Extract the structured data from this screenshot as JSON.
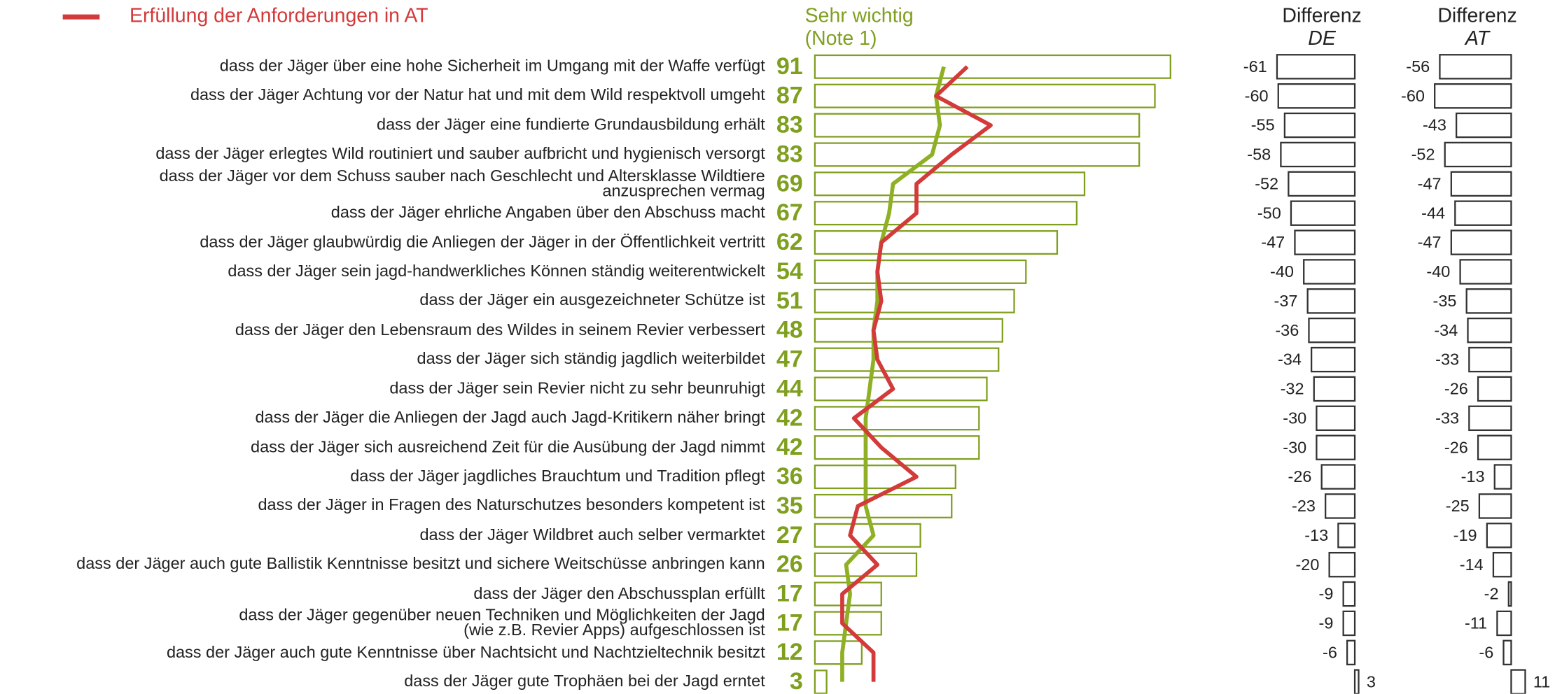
{
  "chart_data": {
    "type": "bar",
    "legend_position": "top-left",
    "categories": [
      "dass der Jäger über eine hohe Sicherheit im Umgang mit der Waffe verfügt",
      "dass der Jäger Achtung vor der Natur hat und mit dem Wild respektvoll umgeht",
      "dass der Jäger eine fundierte Grundausbildung erhält",
      "dass der Jäger erlegtes Wild routiniert und sauber aufbricht und hygienisch versorgt",
      "dass der Jäger vor dem Schuss sauber nach Geschlecht und Altersklasse Wildtiere\nanzusprechen vermag",
      "dass der Jäger ehrliche Angaben über den Abschuss macht",
      "dass der Jäger glaubwürdig die Anliegen der Jäger in der Öffentlichkeit vertritt",
      "dass der Jäger sein jagd-handwerkliches Können ständig weiterentwickelt",
      "dass der Jäger ein ausgezeichneter Schütze ist",
      "dass der Jäger den Lebensraum des Wildes in seinem Revier verbessert",
      "dass der Jäger sich ständig jagdlich weiterbildet",
      "dass der Jäger sein Revier nicht zu sehr beunruhigt",
      "dass der Jäger die Anliegen der Jagd auch Jagd-Kritikern näher bringt",
      "dass der Jäger sich ausreichend Zeit für die Ausübung der Jagd nimmt",
      "dass der Jäger jagdliches Brauchtum und Tradition pflegt",
      "dass der Jäger in Fragen des Naturschutzes besonders kompetent ist",
      "dass der Jäger Wildbret auch selber vermarktet",
      "dass der Jäger auch gute Ballistik Kenntnisse besitzt und sichere Weitschüsse anbringen kann",
      "dass der Jäger den Abschussplan erfüllt",
      "dass der Jäger gegenüber neuen Techniken und Möglichkeiten der Jagd\n(wie z.B.  Revier Apps) aufgeschlossen ist",
      "dass der Jäger auch gute Kenntnisse über Nachtsicht und Nachtzieltechnik besitzt",
      "dass der Jäger gute Trophäen bei der Jagd erntet"
    ],
    "series": [
      {
        "name": "Sehr wichtig\n(Note 1)",
        "type": "bar",
        "color": "#7f9f1f",
        "values": [
          91,
          87,
          83,
          83,
          69,
          67,
          62,
          54,
          51,
          48,
          47,
          44,
          42,
          42,
          36,
          35,
          27,
          26,
          17,
          17,
          12,
          3
        ]
      },
      {
        "name": "Erfüllung der Anforderungen in AT",
        "type": "line",
        "color": "#d33a3a",
        "values": [
          39,
          31,
          45,
          35,
          26,
          26,
          17,
          16,
          17,
          15,
          16,
          20,
          10,
          17,
          26,
          11,
          9,
          16,
          7,
          7,
          15,
          15
        ]
      },
      {
        "type": "line",
        "color": "#8fb025",
        "values": [
          33,
          31,
          32,
          30,
          20,
          19,
          17,
          16,
          16,
          15,
          15,
          14,
          13,
          13,
          13,
          13,
          15,
          8,
          9,
          8,
          7,
          7
        ]
      }
    ],
    "xlim": [
      0,
      91
    ],
    "diff_de": {
      "title": "Differenz",
      "subtitle": "DE",
      "color": "#333333",
      "values": [
        -61,
        -60,
        -55,
        -58,
        -52,
        -50,
        -47,
        -40,
        -37,
        -36,
        -34,
        -32,
        -30,
        -30,
        -26,
        -23,
        -13,
        -20,
        -9,
        -9,
        -6,
        3
      ]
    },
    "diff_at": {
      "title": "Differenz",
      "subtitle": "AT",
      "color": "#333333",
      "values": [
        -56,
        -60,
        -43,
        -52,
        -47,
        -44,
        -47,
        -40,
        -35,
        -34,
        -33,
        -26,
        -33,
        -26,
        -13,
        -25,
        -19,
        -14,
        -2,
        -11,
        -6,
        11
      ]
    }
  }
}
